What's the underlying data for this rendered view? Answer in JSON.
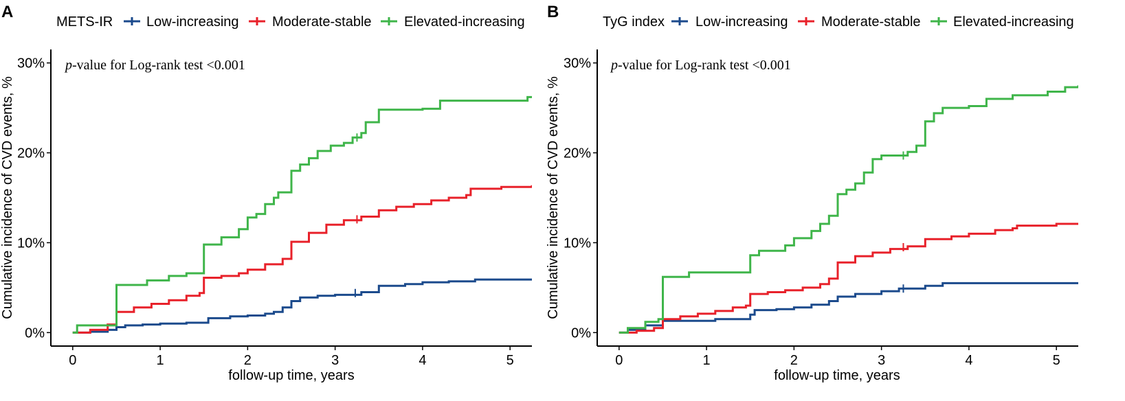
{
  "colors": {
    "low": "#1b4a8c",
    "moderate": "#e8212a",
    "elevated": "#3fb54a",
    "axis": "#000000"
  },
  "chart_data": [
    {
      "type": "line",
      "panel_label": "A",
      "legend_title": "METS-IR",
      "legend_position": "top",
      "annotation": {
        "italic": "p",
        "text": "-value for Log-rank test <0.001"
      },
      "xlabel": "follow-up time, years",
      "ylabel": "Cumulative incidence of CVD events, %",
      "xlim": [
        -0.25,
        5.25
      ],
      "ylim": [
        -1.5,
        31.5
      ],
      "x_ticks": [
        0,
        1,
        2,
        3,
        4,
        5
      ],
      "x_tick_labels": [
        "0",
        "1",
        "2",
        "3",
        "4",
        "5"
      ],
      "y_ticks": [
        0,
        10,
        20,
        30
      ],
      "y_tick_labels": [
        "0%",
        "10%",
        "20%",
        "30%"
      ],
      "grid": false,
      "series": [
        {
          "name": "Low-increasing",
          "color_key": "low",
          "censor_marks": [
            [
              3.23,
              4.4
            ]
          ],
          "points": [
            [
              0,
              0
            ],
            [
              0.2,
              0.1
            ],
            [
              0.4,
              0.3
            ],
            [
              0.5,
              0.6
            ],
            [
              0.6,
              0.8
            ],
            [
              0.8,
              0.9
            ],
            [
              1.0,
              1.0
            ],
            [
              1.3,
              1.1
            ],
            [
              1.5,
              1.1
            ],
            [
              1.55,
              1.6
            ],
            [
              1.8,
              1.8
            ],
            [
              2.0,
              1.9
            ],
            [
              2.2,
              2.1
            ],
            [
              2.3,
              2.3
            ],
            [
              2.4,
              2.8
            ],
            [
              2.5,
              3.5
            ],
            [
              2.6,
              3.9
            ],
            [
              2.8,
              4.1
            ],
            [
              3.0,
              4.2
            ],
            [
              3.3,
              4.5
            ],
            [
              3.5,
              5.2
            ],
            [
              3.8,
              5.4
            ],
            [
              4.0,
              5.6
            ],
            [
              4.3,
              5.7
            ],
            [
              4.6,
              5.9
            ],
            [
              5.25,
              5.9
            ]
          ]
        },
        {
          "name": "Moderate-stable",
          "color_key": "moderate",
          "censor_marks": [
            [
              3.25,
              12.6
            ]
          ],
          "points": [
            [
              0,
              0
            ],
            [
              0.2,
              0.3
            ],
            [
              0.4,
              0.9
            ],
            [
              0.5,
              2.3
            ],
            [
              0.7,
              2.8
            ],
            [
              0.9,
              3.2
            ],
            [
              1.1,
              3.6
            ],
            [
              1.3,
              4.1
            ],
            [
              1.45,
              4.4
            ],
            [
              1.5,
              6.1
            ],
            [
              1.7,
              6.3
            ],
            [
              1.9,
              6.6
            ],
            [
              2.0,
              7.0
            ],
            [
              2.2,
              7.6
            ],
            [
              2.4,
              8.2
            ],
            [
              2.5,
              10.1
            ],
            [
              2.7,
              11.1
            ],
            [
              2.9,
              12.0
            ],
            [
              3.1,
              12.5
            ],
            [
              3.3,
              12.9
            ],
            [
              3.5,
              13.6
            ],
            [
              3.7,
              14.0
            ],
            [
              3.9,
              14.3
            ],
            [
              4.1,
              14.7
            ],
            [
              4.3,
              15.0
            ],
            [
              4.5,
              15.3
            ],
            [
              4.55,
              16.0
            ],
            [
              4.9,
              16.2
            ],
            [
              5.25,
              16.4
            ]
          ]
        },
        {
          "name": "Elevated-increasing",
          "color_key": "elevated",
          "censor_marks": [
            [
              3.25,
              21.7
            ]
          ],
          "points": [
            [
              0,
              0
            ],
            [
              0.05,
              0.8
            ],
            [
              0.48,
              0.8
            ],
            [
              0.5,
              5.3
            ],
            [
              0.85,
              5.8
            ],
            [
              1.1,
              6.3
            ],
            [
              1.3,
              6.6
            ],
            [
              1.5,
              9.8
            ],
            [
              1.7,
              10.6
            ],
            [
              1.9,
              11.5
            ],
            [
              2.0,
              12.8
            ],
            [
              2.1,
              13.2
            ],
            [
              2.2,
              14.3
            ],
            [
              2.3,
              15.0
            ],
            [
              2.35,
              15.6
            ],
            [
              2.5,
              18.0
            ],
            [
              2.6,
              18.7
            ],
            [
              2.7,
              19.4
            ],
            [
              2.8,
              20.2
            ],
            [
              2.95,
              20.8
            ],
            [
              3.1,
              21.1
            ],
            [
              3.2,
              21.7
            ],
            [
              3.3,
              22.2
            ],
            [
              3.35,
              23.4
            ],
            [
              3.5,
              24.8
            ],
            [
              4.0,
              24.9
            ],
            [
              4.2,
              25.8
            ],
            [
              5.2,
              26.2
            ],
            [
              5.25,
              26.2
            ]
          ]
        }
      ]
    },
    {
      "type": "line",
      "panel_label": "B",
      "legend_title": "TyG index",
      "legend_position": "top",
      "annotation": {
        "italic": "p",
        "text": "-value for Log-rank test <0.001"
      },
      "xlabel": "follow-up time, years",
      "ylabel": "Cumulative incidence of CVD events, %",
      "xlim": [
        -0.25,
        5.25
      ],
      "ylim": [
        -1.5,
        31.5
      ],
      "x_ticks": [
        0,
        1,
        2,
        3,
        4,
        5
      ],
      "x_tick_labels": [
        "0",
        "1",
        "2",
        "3",
        "4",
        "5"
      ],
      "y_ticks": [
        0,
        10,
        20,
        30
      ],
      "y_tick_labels": [
        "0%",
        "10%",
        "20%",
        "30%"
      ],
      "grid": false,
      "series": [
        {
          "name": "Low-increasing",
          "color_key": "low",
          "censor_marks": [
            [
              3.25,
              4.9
            ]
          ],
          "points": [
            [
              0,
              0
            ],
            [
              0.1,
              0.3
            ],
            [
              0.3,
              0.8
            ],
            [
              0.5,
              1.3
            ],
            [
              0.8,
              1.3
            ],
            [
              1.1,
              1.5
            ],
            [
              1.5,
              2.0
            ],
            [
              1.55,
              2.5
            ],
            [
              1.8,
              2.6
            ],
            [
              2.0,
              2.8
            ],
            [
              2.2,
              3.1
            ],
            [
              2.4,
              3.5
            ],
            [
              2.5,
              4.0
            ],
            [
              2.7,
              4.3
            ],
            [
              3.0,
              4.6
            ],
            [
              3.2,
              4.9
            ],
            [
              3.5,
              5.2
            ],
            [
              3.7,
              5.5
            ],
            [
              5.25,
              5.5
            ]
          ]
        },
        {
          "name": "Moderate-stable",
          "color_key": "moderate",
          "censor_marks": [
            [
              3.25,
              9.5
            ]
          ],
          "points": [
            [
              0,
              0
            ],
            [
              0.2,
              0.2
            ],
            [
              0.4,
              0.5
            ],
            [
              0.5,
              1.5
            ],
            [
              0.7,
              1.8
            ],
            [
              0.9,
              2.1
            ],
            [
              1.1,
              2.4
            ],
            [
              1.3,
              2.8
            ],
            [
              1.45,
              3.0
            ],
            [
              1.5,
              4.3
            ],
            [
              1.7,
              4.5
            ],
            [
              1.9,
              4.7
            ],
            [
              2.1,
              5.0
            ],
            [
              2.3,
              5.4
            ],
            [
              2.4,
              6.0
            ],
            [
              2.5,
              7.8
            ],
            [
              2.7,
              8.5
            ],
            [
              2.9,
              8.9
            ],
            [
              3.1,
              9.3
            ],
            [
              3.3,
              9.6
            ],
            [
              3.5,
              10.4
            ],
            [
              3.8,
              10.7
            ],
            [
              4.0,
              11.0
            ],
            [
              4.3,
              11.4
            ],
            [
              4.5,
              11.6
            ],
            [
              4.55,
              11.9
            ],
            [
              5.0,
              12.1
            ],
            [
              5.25,
              12.2
            ]
          ]
        },
        {
          "name": "Elevated-increasing",
          "color_key": "elevated",
          "censor_marks": [
            [
              3.25,
              19.7
            ]
          ],
          "points": [
            [
              0,
              0
            ],
            [
              0.1,
              0.5
            ],
            [
              0.3,
              1.2
            ],
            [
              0.45,
              1.5
            ],
            [
              0.5,
              6.2
            ],
            [
              0.8,
              6.7
            ],
            [
              1.2,
              6.7
            ],
            [
              1.5,
              8.6
            ],
            [
              1.6,
              9.1
            ],
            [
              1.9,
              9.7
            ],
            [
              2.0,
              10.5
            ],
            [
              2.2,
              11.3
            ],
            [
              2.3,
              12.1
            ],
            [
              2.4,
              13.0
            ],
            [
              2.5,
              15.4
            ],
            [
              2.6,
              15.9
            ],
            [
              2.7,
              16.6
            ],
            [
              2.8,
              17.8
            ],
            [
              2.9,
              19.3
            ],
            [
              3.0,
              19.7
            ],
            [
              3.3,
              20.1
            ],
            [
              3.4,
              20.8
            ],
            [
              3.5,
              23.5
            ],
            [
              3.6,
              24.4
            ],
            [
              3.7,
              25.0
            ],
            [
              4.0,
              25.2
            ],
            [
              4.2,
              26.0
            ],
            [
              4.5,
              26.4
            ],
            [
              4.9,
              26.8
            ],
            [
              5.1,
              27.3
            ],
            [
              5.25,
              27.5
            ]
          ]
        }
      ]
    }
  ]
}
